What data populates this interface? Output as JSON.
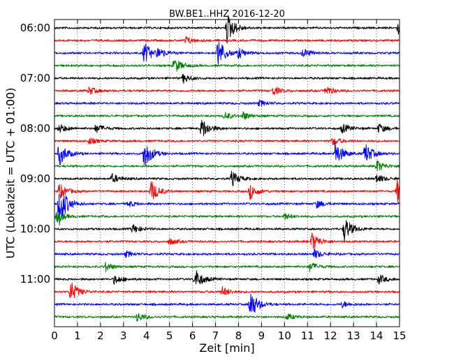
{
  "chart_data": {
    "type": "line",
    "title": "BW.BE1..HHZ 2016-12-20",
    "xlabel": "Zeit  [min]",
    "ylabel": "UTC (Lokalzeit = UTC + 01:00)",
    "xlim": [
      0,
      15
    ],
    "x_ticks": [
      "0",
      "1",
      "2",
      "3",
      "4",
      "5",
      "6",
      "7",
      "8",
      "9",
      "10",
      "11",
      "12",
      "13",
      "14",
      "15"
    ],
    "y_tick_labels": [
      "06:00",
      "07:00",
      "08:00",
      "09:00",
      "10:00",
      "11:00"
    ],
    "grid": true,
    "trace_interval_minutes": 15,
    "trace_colors": [
      "#000000",
      "#ff0000",
      "#0000ff",
      "#008000"
    ],
    "traces": [
      {
        "start": "06:00",
        "color": "#000000",
        "events": [
          {
            "t": 7.5,
            "amp": 1.0
          },
          {
            "t": 14.95,
            "amp": 0.4
          }
        ]
      },
      {
        "start": "06:15",
        "color": "#ff0000",
        "events": [
          {
            "t": 5.7,
            "amp": 0.25
          }
        ]
      },
      {
        "start": "06:30",
        "color": "#0000ff",
        "events": [
          {
            "t": 3.9,
            "amp": 0.7
          },
          {
            "t": 4.5,
            "amp": 0.3
          },
          {
            "t": 7.1,
            "amp": 1.0
          },
          {
            "t": 8.0,
            "amp": 0.3
          },
          {
            "t": 10.8,
            "amp": 0.3
          }
        ]
      },
      {
        "start": "06:45",
        "color": "#008000",
        "events": [
          {
            "t": 5.2,
            "amp": 0.5
          }
        ]
      },
      {
        "start": "07:00",
        "color": "#000000",
        "events": [
          {
            "t": 5.6,
            "amp": 0.3
          }
        ]
      },
      {
        "start": "07:15",
        "color": "#ff0000",
        "events": [
          {
            "t": 1.5,
            "amp": 0.25
          },
          {
            "t": 9.5,
            "amp": 0.3
          },
          {
            "t": 11.8,
            "amp": 0.3
          }
        ]
      },
      {
        "start": "07:30",
        "color": "#0000ff",
        "events": [
          {
            "t": 8.9,
            "amp": 0.2
          }
        ]
      },
      {
        "start": "07:45",
        "color": "#008000",
        "events": [
          {
            "t": 7.4,
            "amp": 0.25
          },
          {
            "t": 8.2,
            "amp": 0.25
          }
        ]
      },
      {
        "start": "08:00",
        "color": "#000000",
        "events": [
          {
            "t": 0.2,
            "amp": 0.3
          },
          {
            "t": 1.8,
            "amp": 0.3
          },
          {
            "t": 6.4,
            "amp": 0.7
          },
          {
            "t": 12.5,
            "amp": 0.3
          },
          {
            "t": 14.1,
            "amp": 0.3
          }
        ]
      },
      {
        "start": "08:15",
        "color": "#ff0000",
        "events": [
          {
            "t": 1.5,
            "amp": 0.2
          },
          {
            "t": 12.1,
            "amp": 0.25
          }
        ]
      },
      {
        "start": "08:30",
        "color": "#0000ff",
        "events": [
          {
            "t": 0.2,
            "amp": 0.8
          },
          {
            "t": 3.9,
            "amp": 1.0
          },
          {
            "t": 12.2,
            "amp": 0.8
          },
          {
            "t": 13.5,
            "amp": 0.7
          }
        ]
      },
      {
        "start": "08:45",
        "color": "#008000",
        "events": [
          {
            "t": 14.0,
            "amp": 0.4
          }
        ]
      },
      {
        "start": "09:00",
        "color": "#000000",
        "events": [
          {
            "t": 2.5,
            "amp": 0.3
          },
          {
            "t": 7.7,
            "amp": 0.5
          },
          {
            "t": 14.0,
            "amp": 0.3
          }
        ]
      },
      {
        "start": "09:15",
        "color": "#ff0000",
        "events": [
          {
            "t": 0.2,
            "amp": 0.5
          },
          {
            "t": 4.2,
            "amp": 0.7
          },
          {
            "t": 8.5,
            "amp": 0.5
          },
          {
            "t": 14.9,
            "amp": 0.8
          }
        ]
      },
      {
        "start": "09:30",
        "color": "#0000ff",
        "events": [
          {
            "t": 0.2,
            "amp": 1.5
          },
          {
            "t": 3.2,
            "amp": 0.2
          },
          {
            "t": 11.4,
            "amp": 0.25
          }
        ]
      },
      {
        "start": "09:45",
        "color": "#008000",
        "events": [
          {
            "t": 0.1,
            "amp": 0.4
          },
          {
            "t": 10.0,
            "amp": 0.2
          }
        ]
      },
      {
        "start": "10:00",
        "color": "#000000",
        "events": [
          {
            "t": 3.4,
            "amp": 0.3
          },
          {
            "t": 12.6,
            "amp": 0.8
          }
        ]
      },
      {
        "start": "10:15",
        "color": "#ff0000",
        "events": [
          {
            "t": 11.2,
            "amp": 0.6
          },
          {
            "t": 5.0,
            "amp": 0.2
          }
        ]
      },
      {
        "start": "10:30",
        "color": "#0000ff",
        "events": [
          {
            "t": 3.1,
            "amp": 0.2
          },
          {
            "t": 11.3,
            "amp": 0.3
          }
        ]
      },
      {
        "start": "10:45",
        "color": "#008000",
        "events": [
          {
            "t": 2.2,
            "amp": 0.3
          },
          {
            "t": 11.1,
            "amp": 0.3
          }
        ]
      },
      {
        "start": "11:00",
        "color": "#000000",
        "events": [
          {
            "t": 2.6,
            "amp": 0.3
          },
          {
            "t": 6.1,
            "amp": 0.7
          },
          {
            "t": 14.1,
            "amp": 0.3
          }
        ]
      },
      {
        "start": "11:15",
        "color": "#ff0000",
        "events": [
          {
            "t": 0.7,
            "amp": 0.7
          },
          {
            "t": 7.3,
            "amp": 0.3
          }
        ]
      },
      {
        "start": "11:30",
        "color": "#0000ff",
        "events": [
          {
            "t": 8.5,
            "amp": 1.0
          },
          {
            "t": 12.5,
            "amp": 0.2
          }
        ]
      },
      {
        "start": "11:45",
        "color": "#008000",
        "events": [
          {
            "t": 3.6,
            "amp": 0.3
          },
          {
            "t": 10.1,
            "amp": 0.2
          }
        ]
      }
    ]
  }
}
